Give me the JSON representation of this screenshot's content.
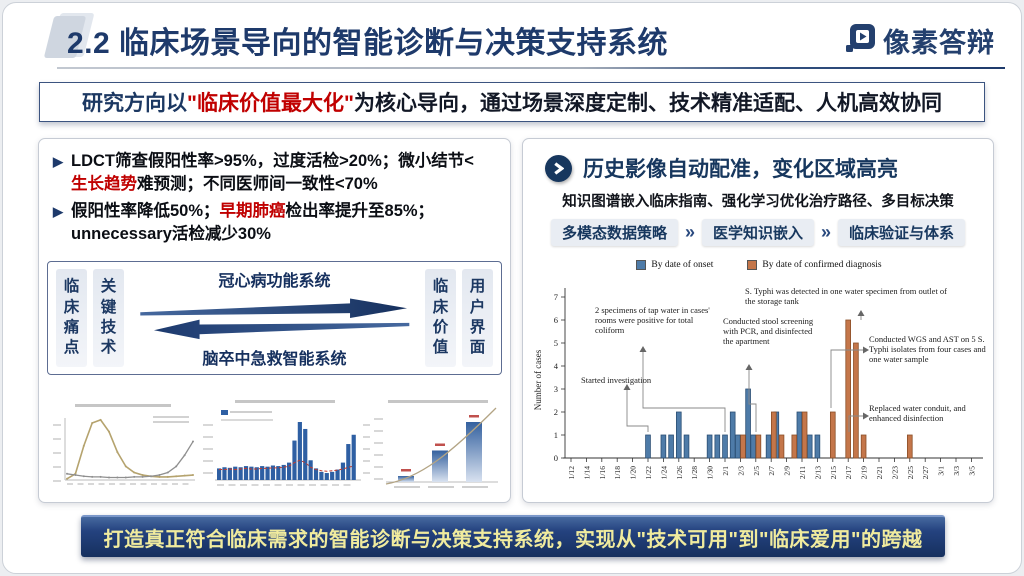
{
  "slide": {
    "header": {
      "title": "2.2 临床场景导向的智能诊断与决策支持系统",
      "logo": "像素答辩"
    },
    "banner": {
      "prefix": "研究方向以",
      "highlight": "\"临床价值最大化\"",
      "suffix": "为核心导向，通过场景深度定制、技术精准适配、人机高效协同"
    },
    "left_panel": {
      "bullets": [
        {
          "pre": "LDCT筛查假阳性率>95%，过度活检>20%；微小结节<",
          "red": "生长趋势",
          "post": "难预测；不同医师间一致性<70%"
        },
        {
          "pre": "假阳性率降低50%；",
          "red": "早期肺癌",
          "post": "检出率提升至85%；",
          "post2": "unnecessary活检减少30%"
        }
      ],
      "flow": {
        "left_boxes": [
          "临床痛点",
          "关键技术"
        ],
        "right_boxes": [
          "临床价值",
          "用户界面"
        ],
        "forward_label": "冠心病功能系统",
        "backward_label": "脑卒中急救智能系统"
      }
    },
    "right_panel": {
      "title": "历史影像自动配准，变化区域高亮",
      "subtitle": "知识图谱嵌入临床指南、强化学习优化治疗路径、多目标决策",
      "pills": [
        "多模态数据策略",
        "医学知识嵌入",
        "临床验证与体系"
      ]
    },
    "footer": "打造真正符合临床需求的智能诊断与决策支持系统，实现从\"技术可用\"到\"临床爱用\"的跨越"
  },
  "icons": {
    "bullet_arrow": "▶",
    "pill_chevron": "»"
  },
  "colors": {
    "navy": "#1e3a6b",
    "red": "#c00000",
    "onset_blue": "#4e7ba8",
    "confirmed_orange": "#c4764a",
    "footer_text": "#f0eb9e"
  },
  "chart_data": [
    {
      "type": "bar",
      "title": "",
      "ylabel": "Number of cases",
      "ylim": [
        0,
        7
      ],
      "grid": false,
      "legend_position": "top",
      "legend": [
        "By date of onset",
        "By date of confirmed diagnosis"
      ],
      "x_tick_labels": [
        "1/12",
        "1/14",
        "1/16",
        "1/18",
        "1/20",
        "1/22",
        "1/24",
        "1/26",
        "1/28",
        "1/30",
        "2/1",
        "2/3",
        "2/5",
        "2/7",
        "2/9",
        "2/11",
        "2/13",
        "2/15",
        "2/17",
        "2/19",
        "2/21",
        "2/23",
        "2/25",
        "2/27",
        "3/1",
        "3/3",
        "3/5"
      ],
      "series": [
        {
          "name": "By date of onset",
          "color": "#4e7ba8",
          "points": {
            "1/22": 1,
            "1/24": 1,
            "1/25": 1,
            "1/26": 2,
            "1/27": 1,
            "1/30": 1,
            "1/31": 1,
            "2/1": 1,
            "2/2": 2,
            "2/3": 1,
            "2/4": 3,
            "2/5": 1,
            "2/7": 1,
            "2/8": 2,
            "2/11": 2,
            "2/12": 1,
            "2/13": 1
          }
        },
        {
          "name": "By date of confirmed diagnosis",
          "color": "#c4764a",
          "points": {
            "2/3": 1,
            "2/5": 1,
            "2/7": 2,
            "2/8": 1,
            "2/10": 1,
            "2/11": 2,
            "2/15": 2,
            "2/17": 6,
            "2/18": 5,
            "2/19": 1,
            "2/25": 1
          }
        }
      ],
      "annotations": [
        "Started investigation",
        "2 specimens of tap water in cases' rooms were positive for total coliform",
        "Conducted stool screening with PCR, and disinfected the apartment",
        "S. Typhi was detected in one water specimen from outlet of the storage tank",
        "Conducted WGS and AST on 5 S. Typhi isolates from four cases and one water sample",
        "Replaced water conduit, and enhanced disinfection"
      ]
    },
    {
      "type": "line",
      "title": "",
      "series": [
        {
          "name": "hump-line",
          "values": [
            2,
            10,
            55,
            92,
            97,
            78,
            45,
            22,
            12,
            8,
            6,
            5,
            5,
            6,
            7,
            8
          ]
        },
        {
          "name": "rising-line",
          "values": [
            10,
            8,
            6,
            5,
            5,
            4,
            4,
            4,
            5,
            5,
            6,
            8,
            12,
            22,
            40,
            62
          ]
        }
      ]
    },
    {
      "type": "bar",
      "title": "",
      "values": [
        20,
        22,
        21,
        23,
        22,
        24,
        23,
        22,
        24,
        23,
        25,
        24,
        26,
        30,
        68,
        100,
        88,
        34,
        20,
        14,
        12,
        14,
        18,
        30,
        62,
        78
      ],
      "line_values": [
        18,
        18,
        19,
        18,
        19,
        20,
        19,
        19,
        20,
        20,
        21,
        21,
        22,
        24,
        30,
        34,
        30,
        22,
        18,
        16,
        15,
        16,
        17,
        19,
        22,
        24
      ]
    },
    {
      "type": "bar",
      "title": "",
      "values": [
        8,
        42,
        80
      ]
    }
  ]
}
